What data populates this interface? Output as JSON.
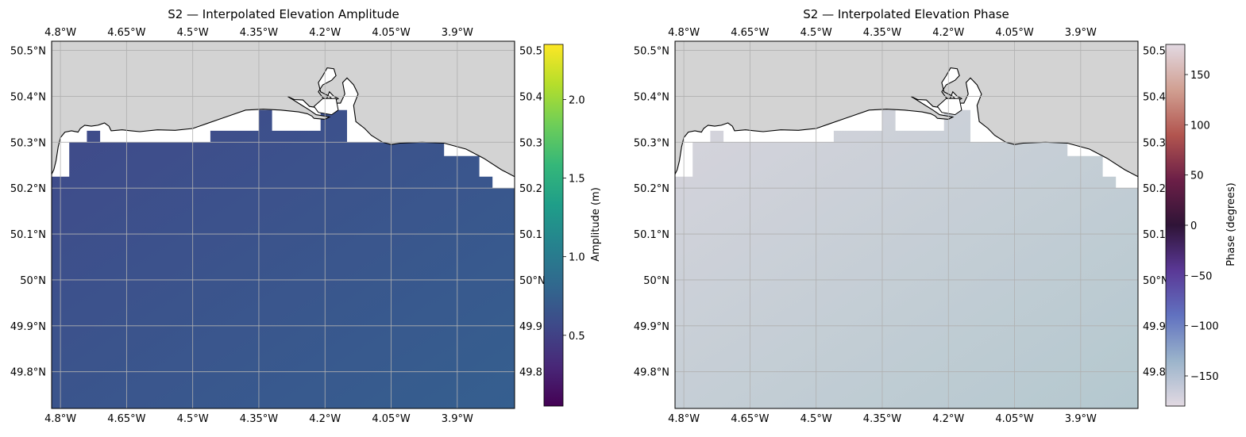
{
  "chart_data": [
    {
      "type": "heatmap",
      "title": "S2 — Interpolated Elevation Amplitude",
      "xlim": [
        -4.82,
        -3.77
      ],
      "ylim": [
        49.72,
        50.52
      ],
      "x_ticks": [
        -4.8,
        -4.65,
        -4.5,
        -4.35,
        -4.2,
        -4.05,
        -3.9
      ],
      "x_tick_labels": [
        "4.8°W",
        "4.65°W",
        "4.5°W",
        "4.35°W",
        "4.2°W",
        "4.05°W",
        "3.9°W"
      ],
      "y_ticks": [
        49.8,
        49.9,
        50.0,
        50.1,
        50.2,
        50.3,
        50.4,
        50.5
      ],
      "y_tick_labels": [
        "49.8°N",
        "49.9°N",
        "50°N",
        "50.1°N",
        "50.2°N",
        "50.3°N",
        "50.4°N",
        "50.5°N"
      ],
      "y_tick_labels_right": [
        "49.8",
        "49.9",
        "50°N",
        "50.1",
        "50.2",
        "50.3",
        "50.4",
        "50.5"
      ],
      "grid": true,
      "land_color": "#d3d3d3",
      "field_gradient": {
        "top_left": 0.52,
        "bottom_right": 0.78
      },
      "field_colors": {
        "low": "#404a8a",
        "high": "#355f8f"
      },
      "colorbar": {
        "label": "Amplitude (m)",
        "range": [
          0.05,
          2.35
        ],
        "ticks": [
          0.5,
          1.0,
          1.5,
          2.0
        ],
        "tick_labels": [
          "0.5",
          "1.0",
          "1.5",
          "2.0"
        ],
        "colormap": "viridis",
        "stops": [
          "#440154",
          "#482878",
          "#3e4989",
          "#31688e",
          "#26828e",
          "#1f9e89",
          "#35b779",
          "#6ece58",
          "#b5de2b",
          "#fde725"
        ]
      }
    },
    {
      "type": "heatmap",
      "title": "S2 — Interpolated Elevation Phase",
      "xlim": [
        -4.82,
        -3.77
      ],
      "ylim": [
        49.72,
        50.52
      ],
      "x_ticks": [
        -4.8,
        -4.65,
        -4.5,
        -4.35,
        -4.2,
        -4.05,
        -3.9
      ],
      "x_tick_labels": [
        "4.8°W",
        "4.65°W",
        "4.5°W",
        "4.35°W",
        "4.2°W",
        "4.05°W",
        "3.9°W"
      ],
      "y_ticks": [
        49.8,
        49.9,
        50.0,
        50.1,
        50.2,
        50.3,
        50.4,
        50.5
      ],
      "y_tick_labels": [
        "49.8°N",
        "49.9°N",
        "50°N",
        "50.1°N",
        "50.2°N",
        "50.3°N",
        "50.4°N",
        "50.5°N"
      ],
      "y_tick_labels_right": [
        "49.8",
        "49.9",
        "50°N",
        "50.1",
        "50.2",
        "50.3",
        "50.4",
        "50.5"
      ],
      "grid": true,
      "land_color": "#d3d3d3",
      "field_gradient": {
        "top_left": -162,
        "bottom_right": -150
      },
      "field_colors": {
        "low": "#d6d4dc",
        "high": "#b4c8cf"
      },
      "colorbar": {
        "label": "Phase (degrees)",
        "range": [
          -180,
          180
        ],
        "ticks": [
          -150,
          -100,
          -50,
          0,
          50,
          100,
          150
        ],
        "tick_labels": [
          "−150",
          "−100",
          "−50",
          "0",
          "50",
          "100",
          "150"
        ],
        "colormap": "twilight",
        "stops": [
          "#e2d9e2",
          "#9bb4cb",
          "#6172c0",
          "#5a3896",
          "#2f1437",
          "#6c1f47",
          "#b2554f",
          "#d1a092",
          "#e2d9e2"
        ]
      }
    }
  ]
}
